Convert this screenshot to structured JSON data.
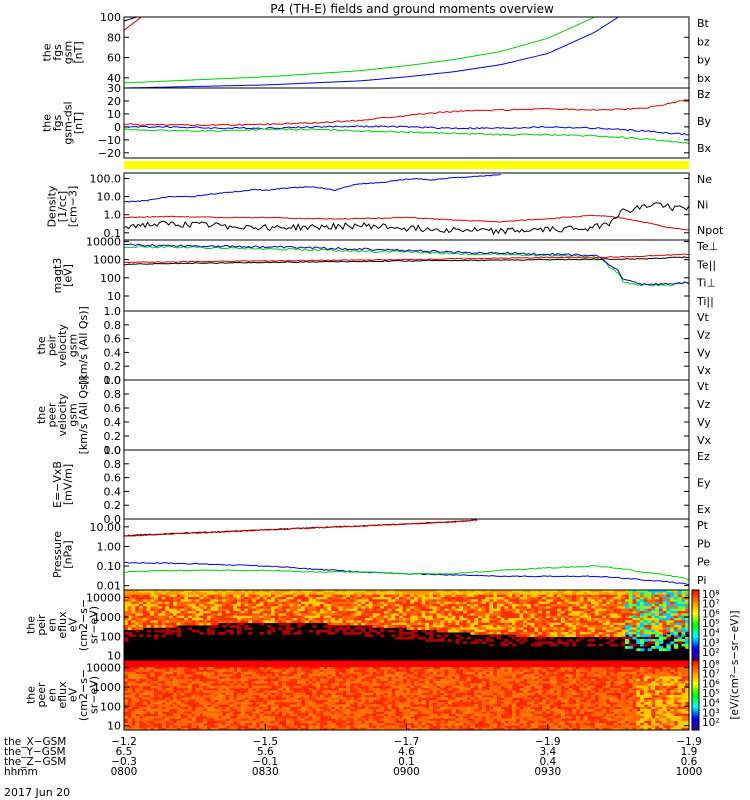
{
  "title": "P4 (TH-E) fields and ground moments overview",
  "date": "2017 Jun 20",
  "colors": {
    "black": "#000000",
    "red": "#e00000",
    "green": "#00d000",
    "blue": "#0000e0",
    "yellow": "#ffff00"
  },
  "chart_data": [
    {
      "id": "fgs_gsm",
      "type": "line",
      "ylabel": [
        "the",
        "fgs",
        "gsm",
        "[nT]"
      ],
      "ylim": [
        30,
        100
      ],
      "yticks": [
        {
          "v": 100,
          "t": "100"
        },
        {
          "v": 80,
          "t": "80"
        },
        {
          "v": 60,
          "t": "60"
        },
        {
          "v": 40,
          "t": "40"
        }
      ],
      "legend": [
        {
          "t": "Bt",
          "c": "black"
        },
        {
          "t": "bz",
          "c": "red"
        },
        {
          "t": "by",
          "c": "green"
        },
        {
          "t": "bx",
          "c": "blue"
        }
      ],
      "series": [
        {
          "c": "black",
          "x": [
            0,
            2,
            4,
            6,
            8
          ],
          "y": [
            96,
            99,
            102,
            105,
            108
          ]
        },
        {
          "c": "red",
          "x": [
            0,
            2,
            4,
            6,
            8
          ],
          "y": [
            87,
            94,
            101,
            107,
            112
          ]
        },
        {
          "c": "green",
          "x": [
            0,
            10,
            20,
            30,
            40,
            50,
            60,
            70,
            80,
            90,
            100
          ],
          "y": [
            35,
            37,
            39,
            41,
            44,
            47,
            52,
            58,
            66,
            79,
            100
          ]
        },
        {
          "c": "blue",
          "x": [
            0,
            10,
            20,
            30,
            40,
            50,
            60,
            70,
            80,
            90,
            100,
            105
          ],
          "y": [
            30,
            31,
            32,
            33,
            35,
            37,
            41,
            46,
            53,
            64,
            85,
            100
          ]
        }
      ]
    },
    {
      "id": "fgs_dsl",
      "type": "line",
      "ylabel": [
        "the",
        "fgs",
        "gsm-dsl",
        "[nT]"
      ],
      "ylim": [
        -24,
        30
      ],
      "yticks": [
        {
          "v": 30,
          "t": "30"
        },
        {
          "v": 20,
          "t": "20"
        },
        {
          "v": 10,
          "t": "10"
        },
        {
          "v": 0,
          "t": "0"
        },
        {
          "v": -10,
          "t": "−10"
        },
        {
          "v": -20,
          "t": "−20"
        }
      ],
      "legend": [
        {
          "t": "Bz",
          "c": "red"
        },
        {
          "t": "By",
          "c": "green"
        },
        {
          "t": "Bx",
          "c": "blue"
        }
      ],
      "series": [
        {
          "c": "red",
          "x": [
            0,
            10,
            20,
            30,
            40,
            50,
            60,
            70,
            80,
            90,
            100,
            110,
            120
          ],
          "y": [
            2,
            1.5,
            1.5,
            2,
            3,
            5,
            9,
            12,
            13,
            14,
            13,
            14,
            21
          ]
        },
        {
          "c": "blue",
          "x": [
            0,
            10,
            20,
            30,
            40,
            50,
            60,
            70,
            80,
            90,
            100,
            110,
            120
          ],
          "y": [
            0,
            0,
            -1,
            -1,
            0,
            0.5,
            0,
            -1,
            -1,
            0,
            -1,
            -3,
            -6
          ]
        },
        {
          "c": "green",
          "x": [
            0,
            10,
            20,
            30,
            40,
            50,
            60,
            70,
            80,
            90,
            100,
            110,
            120
          ],
          "y": [
            -2,
            -3,
            -3,
            -2,
            -2,
            -3,
            -4,
            -5,
            -6,
            -6,
            -7,
            -9,
            -13
          ]
        }
      ]
    },
    {
      "id": "density",
      "type": "line",
      "ylog": true,
      "ylabel": [
        "Density",
        "[1/cc]",
        "[cm−3]"
      ],
      "ylim": [
        0.04,
        200
      ],
      "yticks": [
        {
          "v": 100,
          "t": "100.0"
        },
        {
          "v": 10,
          "t": "10.0"
        },
        {
          "v": 1,
          "t": "1.0"
        },
        {
          "v": 0.1,
          "t": "0.1"
        }
      ],
      "legend": [
        {
          "t": "Ne",
          "c": "red"
        },
        {
          "t": "Ni",
          "c": "black"
        },
        {
          "t": "Npot",
          "c": "blue"
        }
      ],
      "series": [
        {
          "c": "blue",
          "x": [
            0,
            5,
            10,
            15,
            20,
            25,
            28,
            30,
            35,
            40,
            45,
            50,
            55,
            60,
            62,
            65,
            70,
            75,
            80
          ],
          "y": [
            5,
            6,
            10,
            10,
            15,
            20,
            25,
            22,
            30,
            35,
            22,
            50,
            60,
            90,
            100,
            80,
            110,
            130,
            160
          ]
        },
        {
          "c": "red",
          "x": [
            0,
            10,
            20,
            30,
            40,
            50,
            60,
            70,
            80,
            90,
            100,
            105,
            110,
            115,
            120
          ],
          "y": [
            0.7,
            0.8,
            0.7,
            0.7,
            0.6,
            0.6,
            0.7,
            0.5,
            0.4,
            0.6,
            0.9,
            0.7,
            0.4,
            0.2,
            0.14
          ]
        },
        {
          "c": "black",
          "x": [
            0,
            10,
            20,
            30,
            40,
            50,
            60,
            70,
            80,
            90,
            100,
            103,
            106,
            110,
            113,
            116,
            120
          ],
          "y": [
            0.25,
            0.3,
            0.25,
            0.2,
            0.2,
            0.25,
            0.18,
            0.15,
            0.12,
            0.15,
            0.2,
            0.35,
            1.5,
            2.5,
            4,
            2.5,
            2.5
          ]
        }
      ]
    },
    {
      "id": "temperature",
      "type": "line",
      "ylog": true,
      "ylabel": [
        "magt3",
        "[eV]"
      ],
      "ylim": [
        1.5,
        12000
      ],
      "yticks": [
        {
          "v": 10000,
          "t": "10000"
        },
        {
          "v": 1000,
          "t": "1000"
        },
        {
          "v": 100,
          "t": "100"
        },
        {
          "v": 10,
          "t": "10"
        },
        {
          "v": 1,
          "t": "1"
        }
      ],
      "legend": [
        {
          "t": "Te⊥",
          "c": "red"
        },
        {
          "t": "Te||",
          "c": "black"
        },
        {
          "t": "Ti⊥",
          "c": "blue"
        },
        {
          "t": "Ti||",
          "c": "green"
        }
      ],
      "series": [
        {
          "c": "green",
          "x": [
            0,
            10,
            20,
            30,
            40,
            50,
            60,
            70,
            80,
            90,
            100,
            103,
            106,
            110,
            115,
            120
          ],
          "y": [
            5000,
            5000,
            4500,
            4000,
            3500,
            3000,
            2600,
            2200,
            2000,
            1700,
            1500,
            400,
            60,
            40,
            40,
            50
          ]
        },
        {
          "c": "blue",
          "x": [
            0,
            10,
            20,
            30,
            40,
            50,
            60,
            70,
            80,
            90,
            100,
            103,
            106,
            110,
            115,
            120
          ],
          "y": [
            6500,
            6000,
            5500,
            5000,
            4500,
            3800,
            3200,
            2600,
            2300,
            2000,
            1700,
            500,
            80,
            45,
            45,
            55
          ]
        },
        {
          "c": "red",
          "x": [
            0,
            10,
            20,
            30,
            40,
            50,
            60,
            70,
            80,
            90,
            100,
            110,
            120
          ],
          "y": [
            700,
            750,
            800,
            850,
            900,
            950,
            1000,
            1100,
            1200,
            1300,
            1300,
            1500,
            2000
          ]
        },
        {
          "c": "black",
          "x": [
            0,
            10,
            20,
            30,
            40,
            50,
            60,
            70,
            80,
            90,
            100,
            110,
            120
          ],
          "y": [
            550,
            600,
            650,
            700,
            750,
            800,
            850,
            900,
            950,
            1000,
            1050,
            1100,
            1400
          ]
        }
      ]
    },
    {
      "id": "peir_velocity",
      "type": "line",
      "ylabel": [
        "the",
        "peir",
        "velocity",
        "gsm",
        "[km/s (All Qs)]"
      ],
      "ylim": [
        0,
        1
      ],
      "yticks": [
        {
          "v": 1,
          "t": "1.0"
        },
        {
          "v": 0.8,
          "t": "0.8"
        },
        {
          "v": 0.6,
          "t": "0.6"
        },
        {
          "v": 0.4,
          "t": "0.4"
        },
        {
          "v": 0.2,
          "t": "0.2"
        },
        {
          "v": 0,
          "t": "0.0"
        }
      ],
      "legend": [
        {
          "t": "Vt",
          "c": "black"
        },
        {
          "t": "Vz",
          "c": "red"
        },
        {
          "t": "Vy",
          "c": "green"
        },
        {
          "t": "Vx",
          "c": "blue"
        }
      ],
      "series": []
    },
    {
      "id": "peer_velocity",
      "type": "line",
      "ylabel": [
        "the",
        "peer",
        "velocity",
        "gsm",
        "[km/s (All Qs)]"
      ],
      "ylim": [
        0,
        1
      ],
      "yticks": [
        {
          "v": 1,
          "t": "1.0"
        },
        {
          "v": 0.8,
          "t": "0.8"
        },
        {
          "v": 0.6,
          "t": "0.6"
        },
        {
          "v": 0.4,
          "t": "0.4"
        },
        {
          "v": 0.2,
          "t": "0.2"
        },
        {
          "v": 0,
          "t": "0.0"
        }
      ],
      "legend": [
        {
          "t": "Vt",
          "c": "black"
        },
        {
          "t": "Vz",
          "c": "red"
        },
        {
          "t": "Vy",
          "c": "green"
        },
        {
          "t": "Vx",
          "c": "blue"
        }
      ],
      "series": []
    },
    {
      "id": "efield",
      "type": "line",
      "ylabel": [
        "E=−VxB",
        "[mV/m]"
      ],
      "ylim": [
        0,
        1
      ],
      "yticks": [
        {
          "v": 1,
          "t": "1.0"
        },
        {
          "v": 0.8,
          "t": "0.8"
        },
        {
          "v": 0.6,
          "t": "0.6"
        },
        {
          "v": 0.4,
          "t": "0.4"
        },
        {
          "v": 0.2,
          "t": "0.2"
        },
        {
          "v": 0,
          "t": "0.0"
        }
      ],
      "legend": [
        {
          "t": "Ez",
          "c": "red"
        },
        {
          "t": "Ey",
          "c": "green"
        },
        {
          "t": "Ex",
          "c": "blue"
        }
      ],
      "series": []
    },
    {
      "id": "pressure",
      "type": "line",
      "ylog": true,
      "ylabel": [
        "Pressure",
        "[nPa]"
      ],
      "ylim": [
        0.006,
        25
      ],
      "yticks": [
        {
          "v": 10,
          "t": "10.00"
        },
        {
          "v": 1,
          "t": "1.00"
        },
        {
          "v": 0.1,
          "t": "0.10"
        },
        {
          "v": 0.01,
          "t": "0.01"
        }
      ],
      "legend": [
        {
          "t": "Pt",
          "c": "black"
        },
        {
          "t": "Pb",
          "c": "red"
        },
        {
          "t": "Pe",
          "c": "green"
        },
        {
          "t": "Pi",
          "c": "blue"
        }
      ],
      "series": [
        {
          "c": "black",
          "x": [
            0,
            10,
            20,
            30,
            40,
            50,
            60,
            70,
            75
          ],
          "y": [
            3.5,
            4.5,
            5.5,
            7,
            9,
            11,
            14,
            18,
            22
          ]
        },
        {
          "c": "red",
          "x": [
            0,
            10,
            20,
            30,
            40,
            50,
            60,
            70,
            75
          ],
          "y": [
            3.3,
            4.3,
            5.3,
            6.8,
            8.7,
            10.7,
            13.7,
            17.7,
            21.7
          ]
        },
        {
          "c": "blue",
          "x": [
            0,
            10,
            20,
            30,
            40,
            50,
            60,
            70,
            80,
            90,
            100,
            110,
            120
          ],
          "y": [
            0.15,
            0.14,
            0.12,
            0.1,
            0.07,
            0.05,
            0.04,
            0.035,
            0.03,
            0.03,
            0.03,
            0.02,
            0.012
          ]
        },
        {
          "c": "green",
          "x": [
            0,
            10,
            20,
            30,
            40,
            50,
            60,
            70,
            80,
            90,
            100,
            110,
            120
          ],
          "y": [
            0.05,
            0.06,
            0.06,
            0.06,
            0.05,
            0.05,
            0.04,
            0.04,
            0.06,
            0.08,
            0.1,
            0.05,
            0.02
          ]
        }
      ]
    },
    {
      "id": "peir_eflux",
      "type": "heatmap",
      "ylog": true,
      "ylabel": [
        "the",
        "peir",
        "en",
        "eflux",
        "eV",
        "(cm2−s−",
        "sr−eV)"
      ],
      "ylim": [
        6,
        25000
      ],
      "yticks": [
        {
          "v": 10000,
          "t": "10000"
        },
        {
          "v": 1000,
          "t": "1000"
        },
        {
          "v": 100,
          "t": "100"
        },
        {
          "v": 10,
          "t": "10"
        }
      ],
      "colorbar": {
        "labels": [
          "10⁸",
          "10⁷",
          "10⁶",
          "10⁵",
          "10⁴",
          "10³",
          "10²"
        ],
        "title": "[eV/(cm²−s−sr−eV)]"
      }
    },
    {
      "id": "peer_eflux",
      "type": "heatmap",
      "ylog": true,
      "ylabel": [
        "the",
        "peer",
        "en",
        "eflux",
        "eV",
        "(cm2−s−",
        "sr−eV)"
      ],
      "ylim": [
        6,
        25000
      ],
      "yticks": [
        {
          "v": 10000,
          "t": "10000"
        },
        {
          "v": 1000,
          "t": "1000"
        },
        {
          "v": 100,
          "t": "100"
        },
        {
          "v": 10,
          "t": "10"
        }
      ],
      "colorbar": {
        "labels": [
          "10⁸",
          "10⁷",
          "10⁶",
          "10⁵",
          "10⁴",
          "10³",
          "10²"
        ],
        "title": "[eV/(cm²−s−sr−eV)]"
      }
    }
  ],
  "x_axis": {
    "range_min": [
      0,
      120
    ],
    "rows": [
      {
        "label": "the_X−GSM",
        "values": [
          "−1.2",
          "−1.5",
          "−1.7",
          "−1.9",
          "−1.9"
        ]
      },
      {
        "label": "the_Y−GSM",
        "values": [
          "6.5",
          "5.6",
          "4.6",
          "3.4",
          "1.9"
        ]
      },
      {
        "label": "the_Z−GSM",
        "values": [
          "−0.3",
          "−0.1",
          "0.1",
          "0.4",
          "0.6"
        ]
      },
      {
        "label": "hhmm",
        "values": [
          "0800",
          "0830",
          "0900",
          "0930",
          "1000"
        ]
      }
    ]
  }
}
